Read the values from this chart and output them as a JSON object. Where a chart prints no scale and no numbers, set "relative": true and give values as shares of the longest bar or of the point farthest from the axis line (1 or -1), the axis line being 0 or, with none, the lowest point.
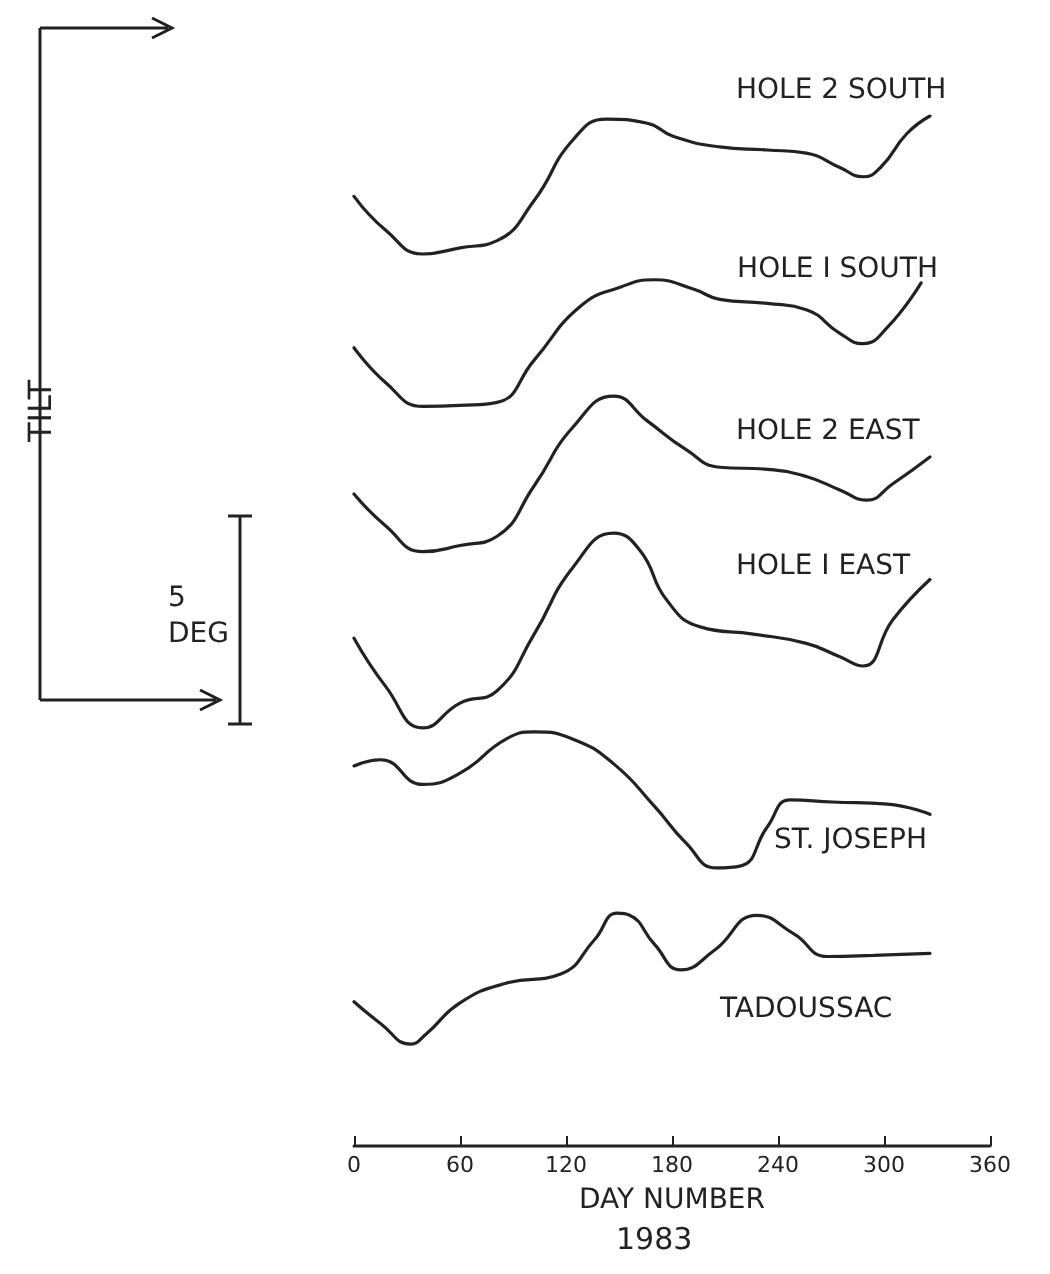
{
  "chart_data": {
    "type": "line",
    "relative": true,
    "xlabel": "DAY NUMBER",
    "annotations": [
      "TILT",
      "5 DEG",
      "1983"
    ],
    "xlim": [
      0,
      360
    ],
    "xticks": [
      0,
      60,
      120,
      180,
      240,
      300,
      360
    ],
    "grid": false,
    "legend": false,
    "marker": "none",
    "line_style": "solid",
    "series": [
      {
        "name": "HOLE 2 SOUTH",
        "color": "#222222",
        "x": [
          0,
          18,
          39,
          60,
          81,
          102,
          124,
          143,
          166,
          181,
          207,
          234,
          256,
          275,
          288,
          298,
          313,
          326
        ],
        "values": [
          0.922,
          0.889,
          0.866,
          0.872,
          0.879,
          0.918,
          0.977,
          0.997,
          0.993,
          0.98,
          0.97,
          0.967,
          0.964,
          0.95,
          0.941,
          0.95,
          0.983,
          1.0
        ]
      },
      {
        "name": "HOLE I SOUTH",
        "color": "#222222",
        "x": [
          0,
          18,
          39,
          60,
          81,
          102,
          128,
          151,
          170,
          192,
          207,
          234,
          256,
          275,
          288,
          302,
          321
        ],
        "values": [
          0.775,
          0.741,
          0.718,
          0.719,
          0.722,
          0.763,
          0.815,
          0.834,
          0.841,
          0.832,
          0.822,
          0.818,
          0.812,
          0.789,
          0.779,
          0.795,
          0.838
        ]
      },
      {
        "name": "HOLE 2 EAST",
        "color": "#222222",
        "x": [
          0,
          18,
          39,
          60,
          81,
          102,
          124,
          147,
          166,
          188,
          207,
          234,
          256,
          275,
          290,
          305,
          326
        ],
        "values": [
          0.633,
          0.602,
          0.577,
          0.583,
          0.592,
          0.641,
          0.698,
          0.728,
          0.704,
          0.676,
          0.659,
          0.657,
          0.65,
          0.637,
          0.627,
          0.643,
          0.669
        ]
      },
      {
        "name": "HOLE I EAST",
        "color": "#222222",
        "x": [
          0,
          18,
          39,
          60,
          81,
          102,
          124,
          147,
          162,
          177,
          196,
          226,
          256,
          275,
          288,
          305,
          326
        ],
        "values": [
          0.493,
          0.446,
          0.406,
          0.43,
          0.442,
          0.497,
          0.562,
          0.595,
          0.578,
          0.53,
          0.504,
          0.497,
          0.488,
          0.475,
          0.466,
          0.511,
          0.55
        ]
      },
      {
        "name": "ST. JOSEPH",
        "color": "#222222",
        "x": [
          0,
          15,
          39,
          60,
          86,
          102,
          124,
          147,
          170,
          188,
          205,
          219,
          234,
          247,
          271,
          302,
          326
        ],
        "values": [
          0.369,
          0.375,
          0.351,
          0.362,
          0.395,
          0.402,
          0.395,
          0.371,
          0.33,
          0.294,
          0.27,
          0.272,
          0.31,
          0.336,
          0.334,
          0.332,
          0.322
        ]
      },
      {
        "name": "TADOUSSAC",
        "color": "#222222",
        "x": [
          0,
          15,
          32,
          41,
          60,
          86,
          117,
          136,
          149,
          156,
          170,
          185,
          204,
          228,
          249,
          268,
          294,
          326
        ],
        "values": [
          0.14,
          0.119,
          0.099,
          0.109,
          0.139,
          0.158,
          0.167,
          0.2,
          0.226,
          0.224,
          0.196,
          0.171,
          0.19,
          0.224,
          0.206,
          0.184,
          0.185,
          0.187
        ]
      }
    ]
  }
}
